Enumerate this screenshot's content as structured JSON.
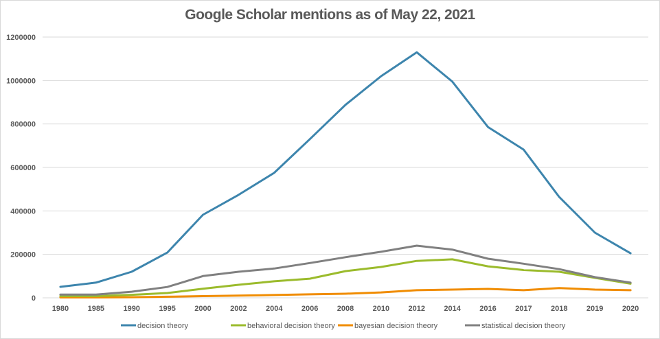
{
  "chart_data": {
    "type": "line",
    "title": "Google Scholar mentions as of May 22, 2021",
    "xlabel": "",
    "ylabel": "",
    "ylim": [
      0,
      1200000
    ],
    "yticks": [
      "0",
      "200000",
      "400000",
      "600000",
      "800000",
      "1000000",
      "1200000"
    ],
    "ytick_values": [
      0,
      200000,
      400000,
      600000,
      800000,
      1000000,
      1200000
    ],
    "grid": true,
    "legend_position": "bottom",
    "categories": [
      "1980",
      "1985",
      "1990",
      "1995",
      "2000",
      "2002",
      "2004",
      "2006",
      "2008",
      "2010",
      "2012",
      "2014",
      "2016",
      "2017",
      "2018",
      "2019",
      "2020"
    ],
    "series": [
      {
        "name": "decision theory",
        "color": "#3d85ad",
        "values": [
          50500,
          70000,
          120000,
          208000,
          382000,
          474000,
          575000,
          730000,
          888000,
          1020000,
          1130000,
          995000,
          786000,
          682000,
          464000,
          300000,
          205000
        ]
      },
      {
        "name": "behavioral decision theory",
        "color": "#9bbb2c",
        "values": [
          8000,
          8000,
          14000,
          22000,
          42000,
          60000,
          76000,
          88000,
          123000,
          142000,
          170000,
          177000,
          145000,
          128000,
          120000,
          92000,
          65000
        ]
      },
      {
        "name": "bayesian decision theory",
        "color": "#f08c00",
        "values": [
          2000,
          2000,
          3000,
          5000,
          8000,
          10000,
          13000,
          16000,
          19000,
          25000,
          35000,
          38000,
          41000,
          35000,
          45000,
          38000,
          35000
        ]
      },
      {
        "name": "statistical decision theory",
        "color": "#808080",
        "values": [
          15000,
          15000,
          28000,
          50000,
          100000,
          120000,
          135000,
          160000,
          187000,
          212000,
          240000,
          222000,
          180000,
          157000,
          132000,
          95000,
          70000
        ]
      }
    ]
  }
}
